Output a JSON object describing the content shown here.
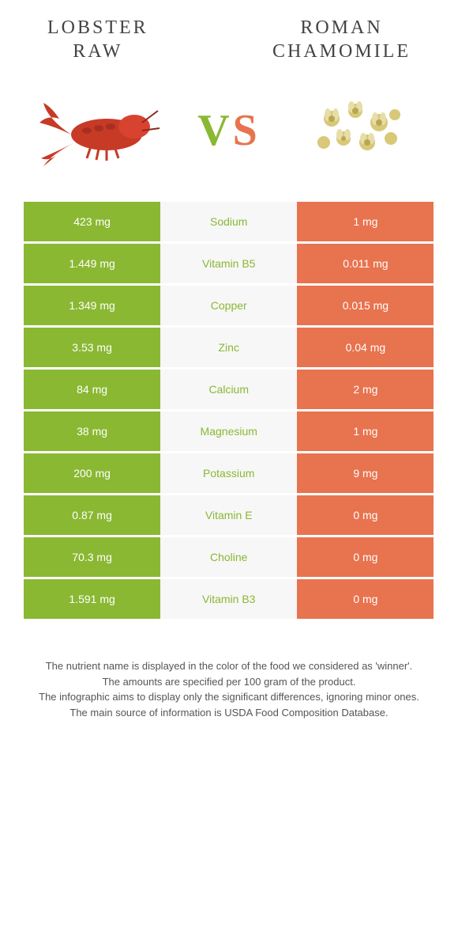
{
  "food_left": {
    "name_line1": "LOBSTER",
    "name_line2": "RAW",
    "color": "#8ab833"
  },
  "food_right": {
    "name_line1": "ROMAN",
    "name_line2": "CHAMOMILE",
    "color": "#e8734f"
  },
  "vs": {
    "v": "V",
    "s": "S"
  },
  "rows": [
    {
      "left": "423 mg",
      "label": "Sodium",
      "right": "1 mg",
      "winner": "left"
    },
    {
      "left": "1.449 mg",
      "label": "Vitamin B5",
      "right": "0.011 mg",
      "winner": "left"
    },
    {
      "left": "1.349 mg",
      "label": "Copper",
      "right": "0.015 mg",
      "winner": "left"
    },
    {
      "left": "3.53 mg",
      "label": "Zinc",
      "right": "0.04 mg",
      "winner": "left"
    },
    {
      "left": "84 mg",
      "label": "Calcium",
      "right": "2 mg",
      "winner": "left"
    },
    {
      "left": "38 mg",
      "label": "Magnesium",
      "right": "1 mg",
      "winner": "left"
    },
    {
      "left": "200 mg",
      "label": "Potassium",
      "right": "9 mg",
      "winner": "left"
    },
    {
      "left": "0.87 mg",
      "label": "Vitamin E",
      "right": "0 mg",
      "winner": "left"
    },
    {
      "left": "70.3 mg",
      "label": "Choline",
      "right": "0 mg",
      "winner": "left"
    },
    {
      "left": "1.591 mg",
      "label": "Vitamin B3",
      "right": "0 mg",
      "winner": "left"
    }
  ],
  "notes": {
    "line1": "The nutrient name is displayed in the color of the food we considered as 'winner'.",
    "line2": "The amounts are specified per 100 gram of the product.",
    "line3": "The infographic aims to display only the significant differences, ignoring minor ones.",
    "line4": "The main source of information is USDA Food Composition Database."
  },
  "colors": {
    "left_bg": "#8ab833",
    "right_bg": "#e8734f",
    "mid_bg": "#f7f7f7"
  }
}
